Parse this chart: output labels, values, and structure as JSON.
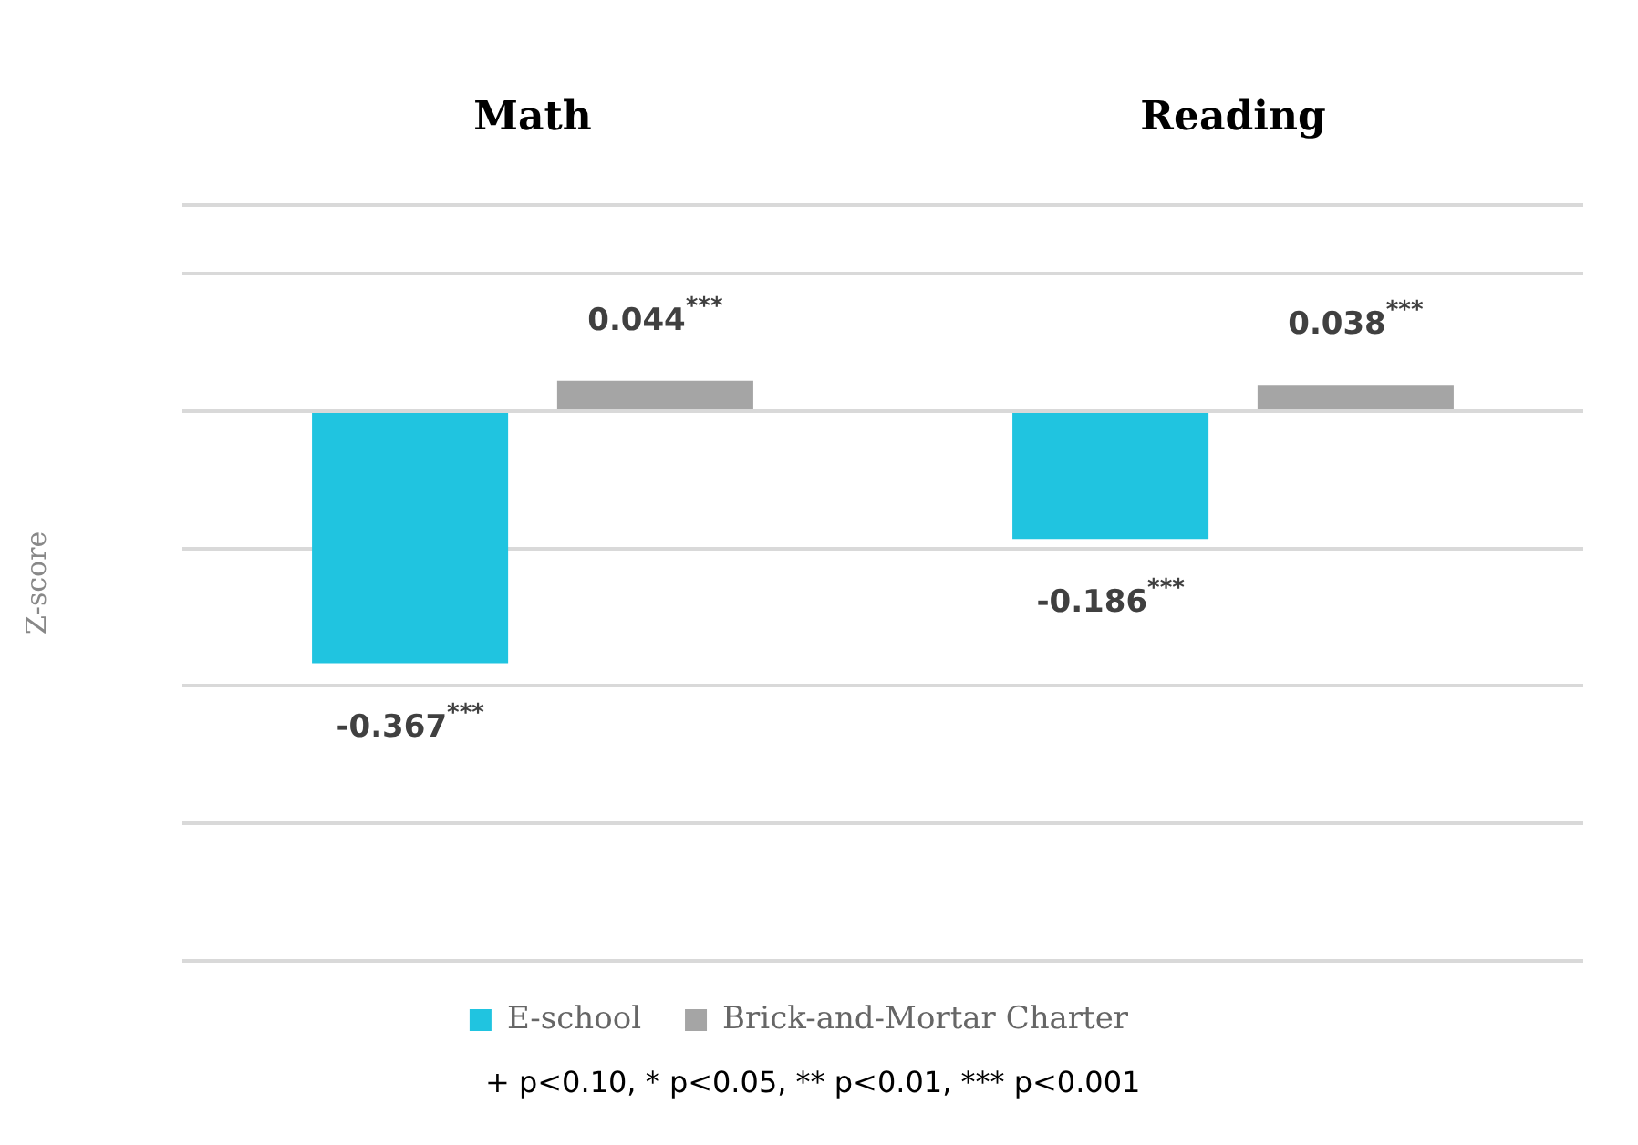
{
  "chart_data": {
    "type": "bar",
    "categories": [
      "Math",
      "Reading"
    ],
    "ylabel": "Z-score",
    "series": [
      {
        "name": "E-school",
        "color": "#20c4e0",
        "values": [
          -0.367,
          -0.186
        ],
        "value_labels": [
          "-0.367$^{***}$",
          "-0.186$^{***}$"
        ]
      },
      {
        "name": "Brick-and-Mortar Charter",
        "color": "#a5a5a5",
        "values": [
          0.044,
          0.038
        ],
        "value_labels": [
          "0.044$^{***}$",
          "0.038$^{***}$"
        ]
      }
    ],
    "ylim": [
      -0.8,
      0.3
    ],
    "grid": "y",
    "legend": "bottom",
    "tick_labels": "x",
    "annotations": [
      "+ p<0.10, * p<0.05, ** p<0.01, *** p<0.001"
    ]
  }
}
